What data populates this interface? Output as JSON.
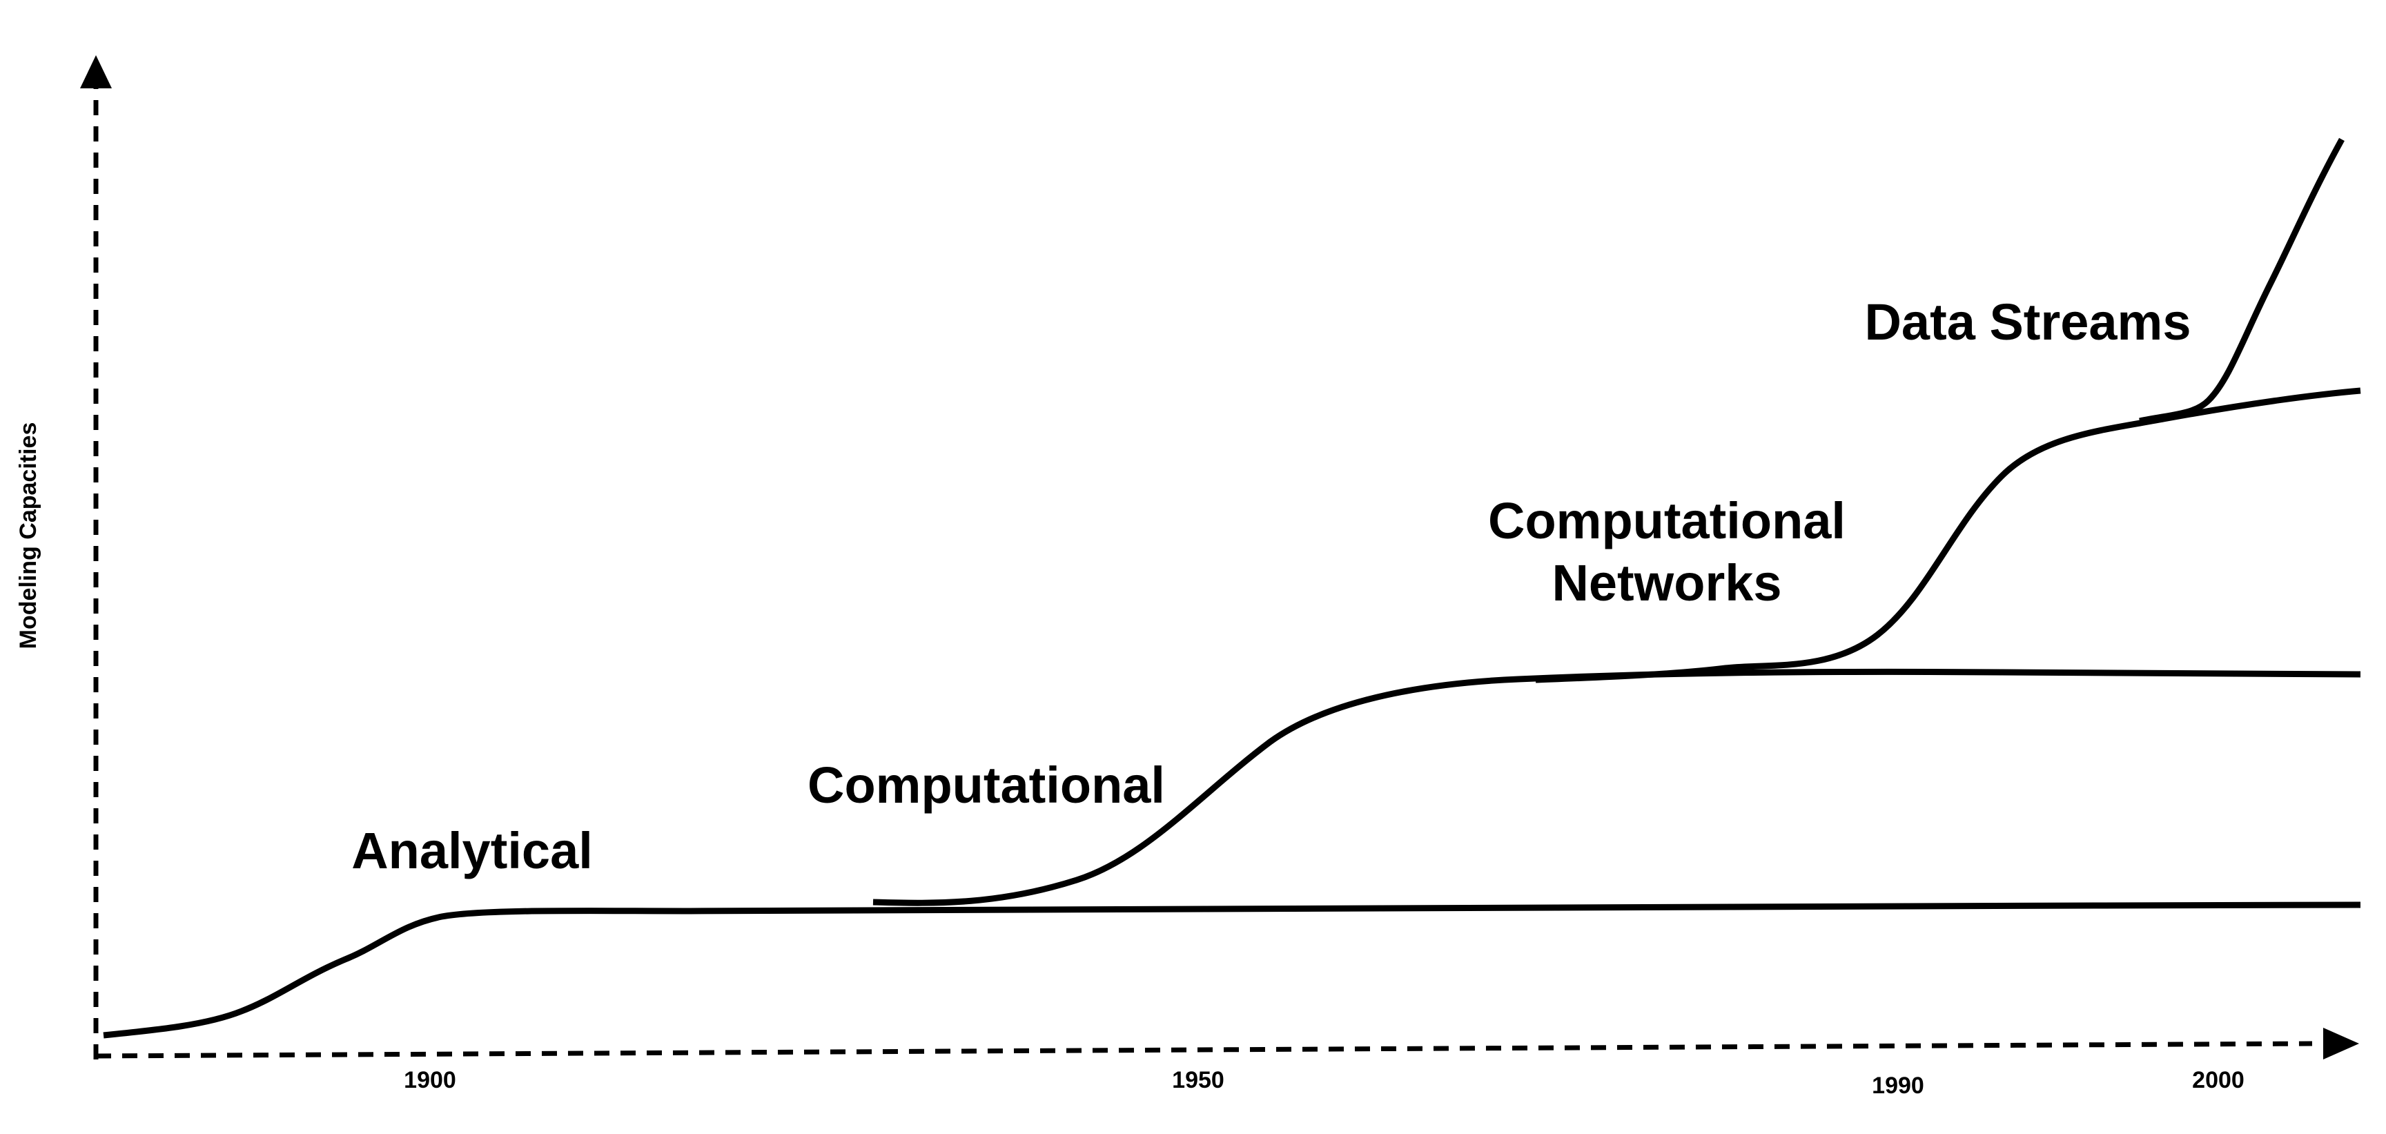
{
  "axes": {
    "y_title": "Modeling Capacities",
    "x_ticks": [
      "1900",
      "1950",
      "1990",
      "2000"
    ]
  },
  "eras": {
    "analytical": "Analytical",
    "computational": "Computational",
    "networks_line1": "Computational",
    "networks_line2": "Networks",
    "data_streams": "Data Streams"
  }
}
